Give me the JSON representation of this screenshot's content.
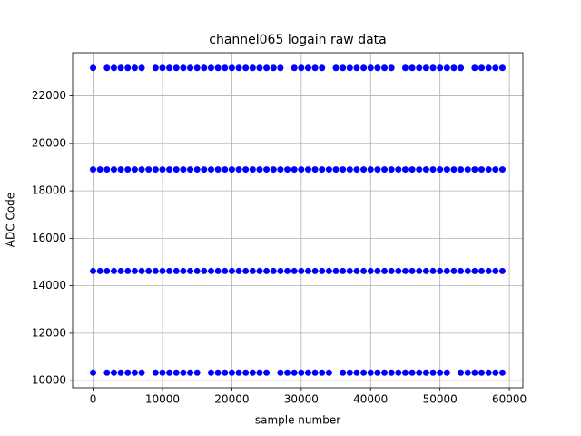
{
  "chart_data": {
    "type": "scatter",
    "title": "channel065 logain raw data",
    "x_label": "sample number",
    "y_label": "ADC Code",
    "x": [
      0,
      1000,
      2000,
      3000,
      4000,
      5000,
      6000,
      7000,
      8000,
      9000,
      10000,
      11000,
      12000,
      13000,
      14000,
      15000,
      16000,
      17000,
      18000,
      19000,
      20000,
      21000,
      22000,
      23000,
      24000,
      25000,
      26000,
      27000,
      28000,
      29000,
      30000,
      31000,
      32000,
      33000,
      34000,
      35000,
      36000,
      37000,
      38000,
      39000,
      40000,
      41000,
      42000,
      43000,
      44000,
      45000,
      46000,
      47000,
      48000,
      49000,
      50000,
      51000,
      52000,
      53000,
      54000,
      55000,
      56000,
      57000,
      58000,
      59000
    ],
    "series": [
      {
        "color": "#0000ff",
        "values": [
          23180,
          null,
          23180,
          23180,
          23180,
          23180,
          23180,
          23180,
          null,
          23180,
          23180,
          23180,
          23180,
          23180,
          23180,
          23180,
          23180,
          23180,
          23180,
          23180,
          23180,
          23180,
          23180,
          23180,
          23180,
          23180,
          23180,
          23180,
          null,
          23180,
          23180,
          23180,
          23180,
          23180,
          null,
          23180,
          23180,
          23180,
          23180,
          23180,
          23180,
          23180,
          23180,
          23180,
          null,
          23180,
          23180,
          23180,
          23180,
          23180,
          23180,
          23180,
          23180,
          23180,
          null,
          23180,
          23180,
          23180,
          23180,
          23180
        ]
      },
      {
        "color": "#0000ff",
        "values": [
          18900,
          18900,
          18900,
          18900,
          18900,
          18900,
          18900,
          18900,
          18900,
          18900,
          18900,
          18900,
          18900,
          18900,
          18900,
          18900,
          18900,
          18900,
          18900,
          18900,
          18900,
          18900,
          18900,
          18900,
          18900,
          18900,
          18900,
          18900,
          18900,
          18900,
          18900,
          18900,
          18900,
          18900,
          18900,
          18900,
          18900,
          18900,
          18900,
          18900,
          18900,
          18900,
          18900,
          18900,
          18900,
          18900,
          18900,
          18900,
          18900,
          18900,
          18900,
          18900,
          18900,
          18900,
          18900,
          18900,
          18900,
          18900,
          18900,
          18900
        ]
      },
      {
        "color": "#0000ff",
        "values": [
          14620,
          14620,
          14620,
          14620,
          14620,
          14620,
          14620,
          14620,
          14620,
          14620,
          14620,
          14620,
          14620,
          14620,
          14620,
          14620,
          14620,
          14620,
          14620,
          14620,
          14620,
          14620,
          14620,
          14620,
          14620,
          14620,
          14620,
          14620,
          14620,
          14620,
          14620,
          14620,
          14620,
          14620,
          14620,
          14620,
          14620,
          14620,
          14620,
          14620,
          14620,
          14620,
          14620,
          14620,
          14620,
          14620,
          14620,
          14620,
          14620,
          14620,
          14620,
          14620,
          14620,
          14620,
          14620,
          14620,
          14620,
          14620,
          14620,
          14620
        ]
      },
      {
        "color": "#0000ff",
        "values": [
          10340,
          null,
          10340,
          10340,
          10340,
          10340,
          10340,
          10340,
          null,
          10340,
          10340,
          10340,
          10340,
          10340,
          10340,
          10340,
          null,
          10340,
          10340,
          10340,
          10340,
          10340,
          10340,
          10340,
          10340,
          10340,
          null,
          10340,
          10340,
          10340,
          10340,
          10340,
          10340,
          10340,
          10340,
          null,
          10340,
          10340,
          10340,
          10340,
          10340,
          10340,
          10340,
          10340,
          10340,
          10340,
          10340,
          10340,
          10340,
          10340,
          10340,
          10340,
          null,
          10340,
          10340,
          10340,
          10340,
          10340,
          10340,
          10340
        ]
      }
    ],
    "xlim": [
      -2950,
      61950
    ],
    "ylim": [
      9700,
      23820
    ],
    "xticks": [
      0,
      10000,
      20000,
      30000,
      40000,
      50000,
      60000
    ],
    "yticks": [
      10000,
      12000,
      14000,
      16000,
      18000,
      20000,
      22000
    ],
    "grid": true
  }
}
